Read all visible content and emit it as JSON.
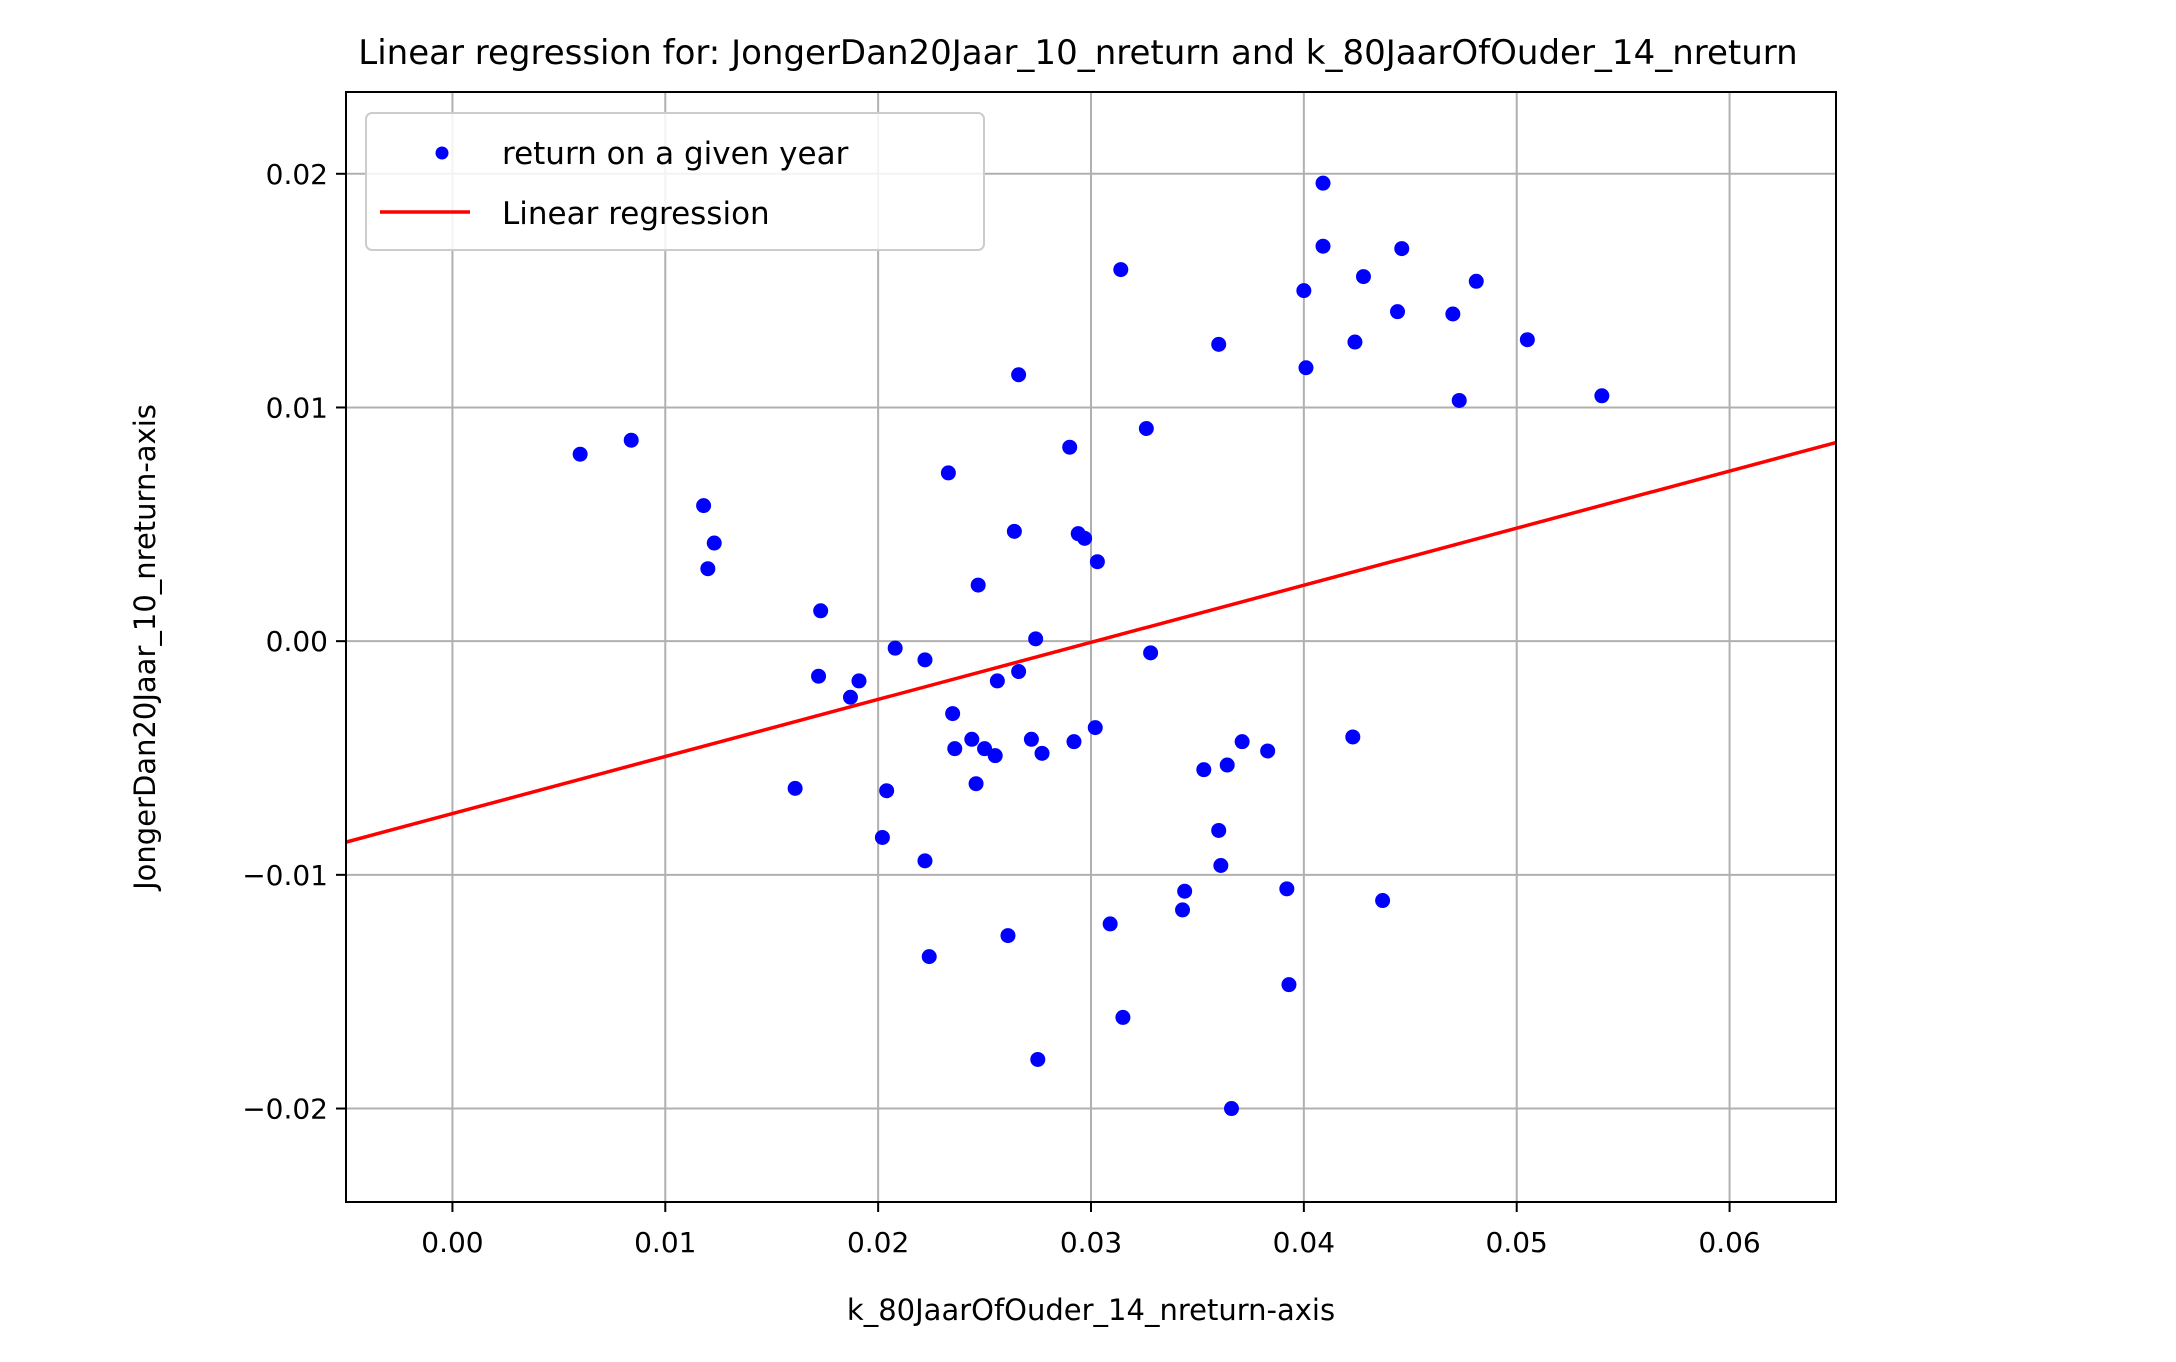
{
  "chart_data": {
    "type": "scatter",
    "title": "Linear regression for: JongerDan20Jaar_10_nreturn and k_80JaarOfOuder_14_nreturn",
    "xlabel": "k_80JaarOfOuder_14_nreturn-axis",
    "ylabel": "JongerDan20Jaar_10_nreturn-axis",
    "xlim": [
      -0.005,
      0.065
    ],
    "ylim": [
      -0.024,
      0.0235
    ],
    "xticks": [
      0.0,
      0.01,
      0.02,
      0.03,
      0.04,
      0.05,
      0.06
    ],
    "xtick_labels": [
      "0.00",
      "0.01",
      "0.02",
      "0.03",
      "0.04",
      "0.05",
      "0.06"
    ],
    "yticks": [
      -0.02,
      -0.01,
      0.0,
      0.01,
      0.02
    ],
    "ytick_labels": [
      "−0.02",
      "−0.01",
      "0.00",
      "0.01",
      "0.02"
    ],
    "grid": true,
    "legend_position": "top-left",
    "series": [
      {
        "name": "return on a given year",
        "kind": "scatter",
        "color": "#0000ff",
        "points": [
          [
            0.006,
            0.008
          ],
          [
            0.0084,
            0.0086
          ],
          [
            0.0118,
            0.0058
          ],
          [
            0.012,
            0.0031
          ],
          [
            0.0123,
            0.0042
          ],
          [
            0.0161,
            -0.0063
          ],
          [
            0.0172,
            -0.0015
          ],
          [
            0.0173,
            0.0013
          ],
          [
            0.0187,
            -0.0024
          ],
          [
            0.0191,
            -0.0017
          ],
          [
            0.0202,
            -0.0084
          ],
          [
            0.0204,
            -0.0064
          ],
          [
            0.0208,
            -0.0003
          ],
          [
            0.0222,
            -0.0008
          ],
          [
            0.0222,
            -0.0094
          ],
          [
            0.0224,
            -0.0135
          ],
          [
            0.0233,
            0.0072
          ],
          [
            0.0235,
            -0.0031
          ],
          [
            0.0236,
            -0.0046
          ],
          [
            0.0244,
            -0.0042
          ],
          [
            0.0246,
            -0.0061
          ],
          [
            0.0247,
            0.0024
          ],
          [
            0.025,
            -0.0046
          ],
          [
            0.0255,
            -0.0049
          ],
          [
            0.0256,
            -0.0017
          ],
          [
            0.0261,
            -0.0126
          ],
          [
            0.0264,
            0.0047
          ],
          [
            0.0266,
            -0.0013
          ],
          [
            0.0266,
            0.0114
          ],
          [
            0.0272,
            -0.0042
          ],
          [
            0.0274,
            0.0001
          ],
          [
            0.0275,
            -0.0179
          ],
          [
            0.0277,
            -0.0048
          ],
          [
            0.029,
            0.0083
          ],
          [
            0.0292,
            -0.0043
          ],
          [
            0.0294,
            0.0046
          ],
          [
            0.0297,
            0.0044
          ],
          [
            0.0302,
            -0.0037
          ],
          [
            0.0303,
            0.0034
          ],
          [
            0.0309,
            -0.0121
          ],
          [
            0.0314,
            0.0159
          ],
          [
            0.0315,
            -0.0161
          ],
          [
            0.0326,
            0.0091
          ],
          [
            0.0328,
            -0.0005
          ],
          [
            0.0343,
            -0.0115
          ],
          [
            0.0344,
            -0.0107
          ],
          [
            0.0353,
            -0.0055
          ],
          [
            0.036,
            -0.0081
          ],
          [
            0.036,
            0.0127
          ],
          [
            0.0361,
            -0.0096
          ],
          [
            0.0364,
            -0.0053
          ],
          [
            0.0366,
            -0.02
          ],
          [
            0.0371,
            -0.0043
          ],
          [
            0.0383,
            -0.0047
          ],
          [
            0.0392,
            -0.0106
          ],
          [
            0.0393,
            -0.0147
          ],
          [
            0.04,
            0.015
          ],
          [
            0.0401,
            0.0117
          ],
          [
            0.0409,
            0.0196
          ],
          [
            0.0409,
            0.0169
          ],
          [
            0.0423,
            -0.0041
          ],
          [
            0.0424,
            0.0128
          ],
          [
            0.0428,
            0.0156
          ],
          [
            0.0437,
            -0.0111
          ],
          [
            0.0444,
            0.0141
          ],
          [
            0.0446,
            0.0168
          ],
          [
            0.047,
            0.014
          ],
          [
            0.0473,
            0.0103
          ],
          [
            0.0481,
            0.0154
          ],
          [
            0.0505,
            0.0129
          ],
          [
            0.054,
            0.0105
          ]
        ]
      },
      {
        "name": "Linear regression",
        "kind": "line",
        "color": "#ff0000",
        "points": [
          [
            -0.005,
            -0.0086
          ],
          [
            0.065,
            0.0085
          ]
        ]
      }
    ]
  }
}
